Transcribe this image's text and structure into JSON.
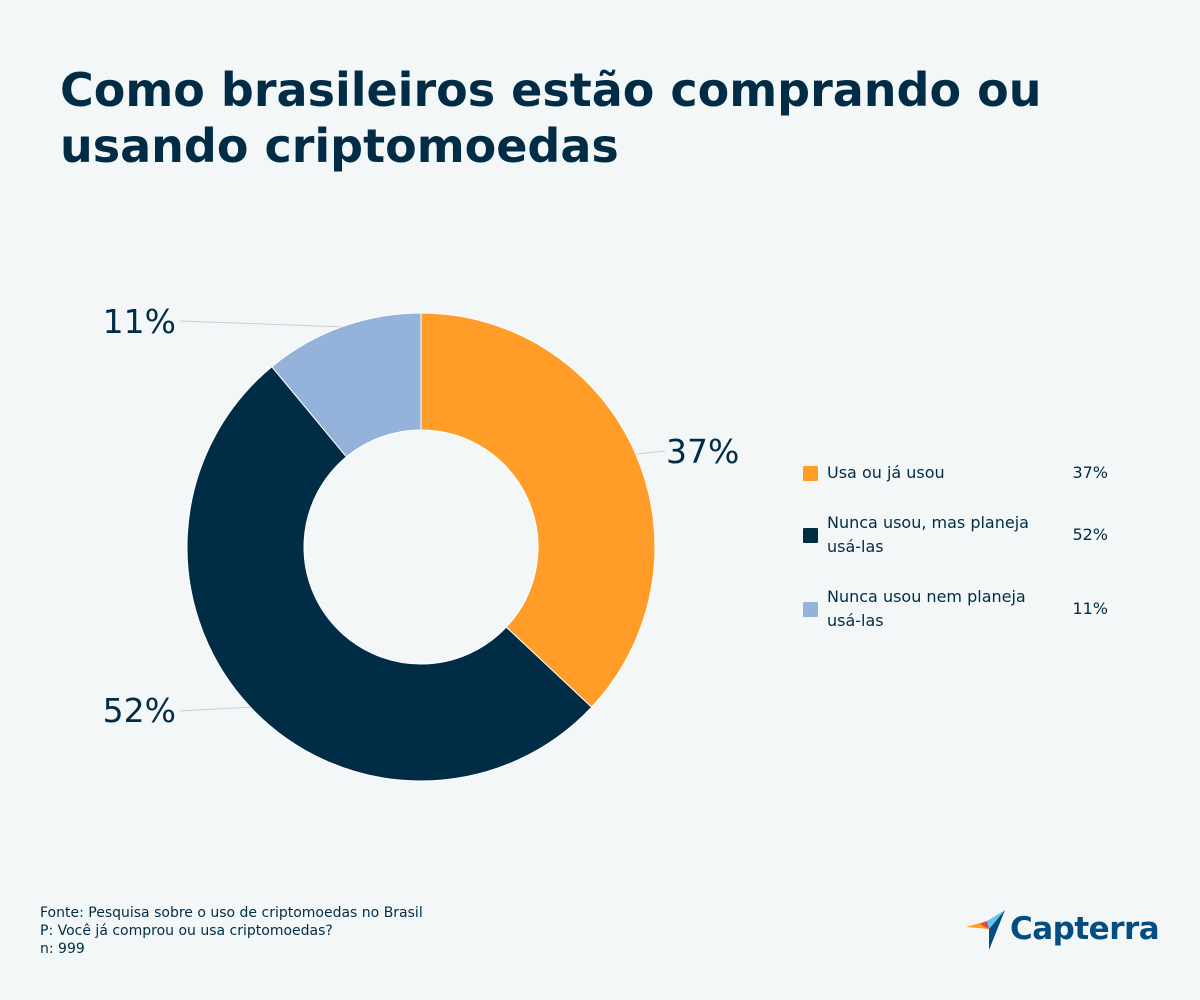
{
  "title": "Como brasileiros estão comprando ou usando criptomoedas",
  "chart_data": {
    "type": "pie",
    "variant": "donut",
    "title": "Como brasileiros estão comprando ou usando criptomoedas",
    "slices": [
      {
        "label": "Usa ou já usou",
        "value": 37,
        "value_label": "37%",
        "color": "#ff9d28"
      },
      {
        "label": "Nunca usou, mas planeja usá-las",
        "value": 52,
        "value_label": "52%",
        "color": "#012c46"
      },
      {
        "label": "Nunca usou nem planeja usá-las",
        "value": 11,
        "value_label": "11%",
        "color": "#95b2da"
      }
    ],
    "legend_position": "right"
  },
  "footer": {
    "source": "Fonte: Pesquisa sobre o uso de criptomoedas no Brasil",
    "question": "P: Você já comprou ou usa criptomoedas?",
    "sample": "n: 999"
  },
  "logo": {
    "text": "Capterra",
    "icon": "capterra-arrow-icon",
    "colors": [
      "#ff9d28",
      "#68c5ed",
      "#044d80",
      "#e54747"
    ]
  }
}
